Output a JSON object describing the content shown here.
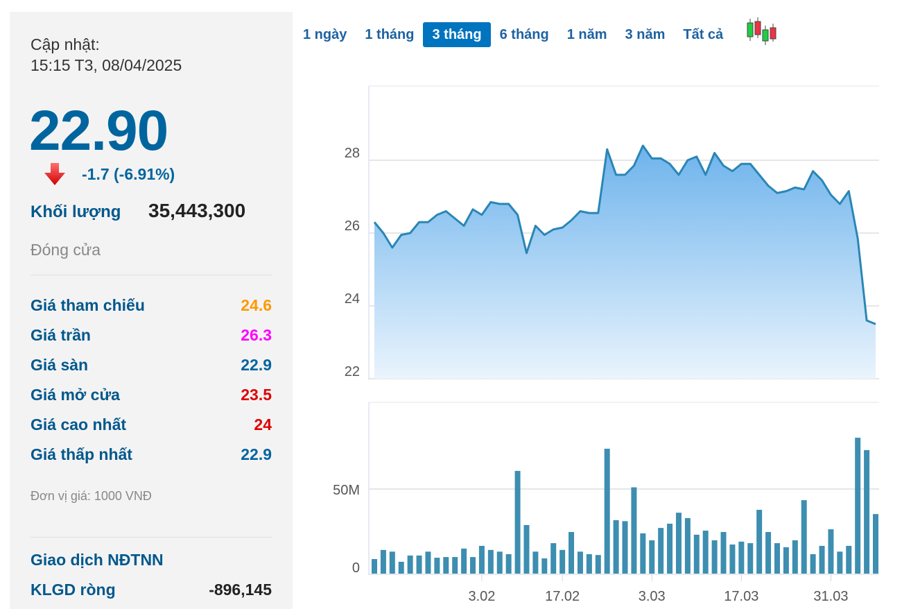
{
  "panel": {
    "updated_label": "Cập nhật:",
    "updated_time": "15:15 T3, 08/04/2025",
    "price": "22.90",
    "change": "-1.7 (-6.91%)",
    "direction_icon": "arrow-down-icon",
    "volume_label": "Khối lượng",
    "volume_value": "35,443,300",
    "status": "Đóng cửa",
    "rows": [
      {
        "label": "Giá tham chiếu",
        "value": "24.6",
        "color": "#ff9900"
      },
      {
        "label": "Giá trần",
        "value": "26.3",
        "color": "#ff00ff"
      },
      {
        "label": "Giá sàn",
        "value": "22.9",
        "color": "#00659e"
      },
      {
        "label": "Giá mở cửa",
        "value": "23.5",
        "color": "#e00000"
      },
      {
        "label": "Giá cao nhất",
        "value": "24",
        "color": "#e00000"
      },
      {
        "label": "Giá thấp nhất",
        "value": "22.9",
        "color": "#00659e"
      }
    ],
    "unit_note": "Đơn vị giá: 1000 VNĐ",
    "foreign_title": "Giao dịch NĐTNN",
    "net_label": "KLGD ròng",
    "net_value": "-896,145"
  },
  "tabs": [
    {
      "label": "1 ngày"
    },
    {
      "label": "1 tháng"
    },
    {
      "label": "3 tháng",
      "active": true
    },
    {
      "label": "6 tháng"
    },
    {
      "label": "1 năm"
    },
    {
      "label": "3 năm"
    },
    {
      "label": "Tất cả"
    }
  ],
  "candlestick_toggle_icon": "candlestick-icon",
  "chart_data": [
    {
      "type": "area",
      "color": "#2a86b5",
      "ylim": [
        22,
        30
      ],
      "yticks": [
        "22",
        "24",
        "26",
        "28"
      ],
      "grid": true,
      "values": [
        26.3,
        26.0,
        25.6,
        25.95,
        26.0,
        26.3,
        26.3,
        26.5,
        26.6,
        26.4,
        26.2,
        26.65,
        26.5,
        26.85,
        26.8,
        26.8,
        26.5,
        25.45,
        26.2,
        25.95,
        26.1,
        26.15,
        26.35,
        26.6,
        26.55,
        26.55,
        28.3,
        27.6,
        27.6,
        27.85,
        28.4,
        28.05,
        28.05,
        27.9,
        27.6,
        28.0,
        28.1,
        27.6,
        28.2,
        27.85,
        27.7,
        27.9,
        27.9,
        27.6,
        27.3,
        27.1,
        27.15,
        27.25,
        27.2,
        27.7,
        27.45,
        27.05,
        26.8,
        27.15,
        25.85,
        23.6,
        23.5
      ]
    },
    {
      "type": "bar",
      "color": "#3d8eb0",
      "ylim": [
        0,
        90
      ],
      "yticks": [
        {
          "value": 0,
          "label": "0"
        },
        {
          "value": 50,
          "label": "50M"
        }
      ],
      "values": [
        8.6,
        14,
        13,
        7,
        10.7,
        10.7,
        13,
        9.4,
        9.8,
        9.8,
        14.8,
        9.8,
        16.4,
        14,
        13,
        11.5,
        60.7,
        28.7,
        13,
        9,
        18,
        14,
        24.6,
        13,
        11.5,
        11,
        73.8,
        31.6,
        31,
        51,
        23.8,
        19.7,
        27,
        29.5,
        36,
        32.8,
        23,
        25.4,
        19.7,
        24.6,
        17.2,
        18.9,
        18,
        37.7,
        24.6,
        18,
        15.6,
        19.7,
        43.4,
        11.5,
        16.4,
        26.2,
        13,
        16.4,
        80.3,
        73,
        35.2
      ],
      "xticks": [
        {
          "index": 12,
          "label": "3.02"
        },
        {
          "index": 21,
          "label": "17.02"
        },
        {
          "index": 31,
          "label": "3.03"
        },
        {
          "index": 41,
          "label": "17.03"
        },
        {
          "index": 51,
          "label": "31.03"
        }
      ]
    }
  ]
}
